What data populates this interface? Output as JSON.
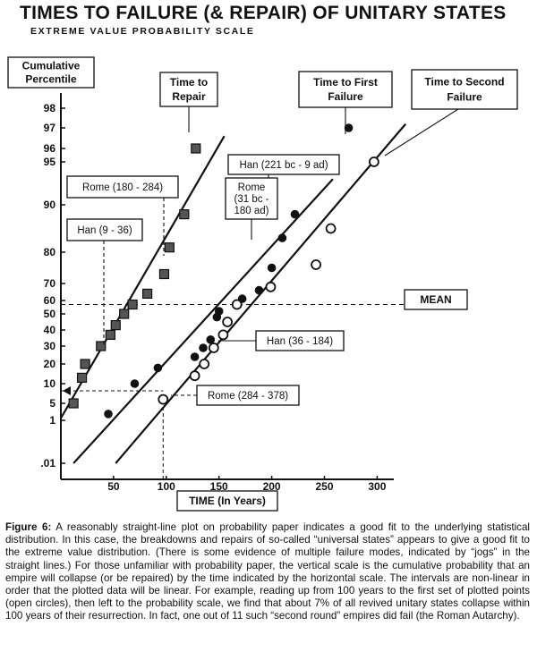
{
  "chart_data": {
    "type": "scatter",
    "title": "TIMES TO FAILURE (& REPAIR) OF UNITARY STATES",
    "subtitle": "EXTREME VALUE PROBABILITY SCALE",
    "xlabel": "TIME (In Years)",
    "ylabel": "Cumulative Percentile",
    "scale": "extreme value probability (y), linear (x)",
    "xlim": [
      0,
      330
    ],
    "x_ticks": [
      "50",
      "100",
      "150",
      "200",
      "250",
      "300"
    ],
    "y_ticks": [
      "98",
      "97",
      "96",
      "95",
      "90",
      "80",
      "70",
      "60",
      "50",
      "40",
      "30",
      "20",
      "10",
      "5",
      "1",
      ".01"
    ],
    "series": [
      {
        "name": "Time to Repair",
        "marker": "square",
        "points": [
          [
            12,
            5
          ],
          [
            20,
            13
          ],
          [
            23,
            20
          ],
          [
            38,
            30
          ],
          [
            47,
            37
          ],
          [
            52,
            43
          ],
          [
            60,
            50
          ],
          [
            68,
            57
          ],
          [
            82,
            64
          ],
          [
            98,
            73
          ],
          [
            103,
            81
          ],
          [
            117,
            88
          ],
          [
            128,
            96
          ]
        ]
      },
      {
        "name": "Time to First Failure",
        "marker": "filled-circle",
        "points": [
          [
            45,
            2.5
          ],
          [
            70,
            10
          ],
          [
            92,
            18
          ],
          [
            127,
            24
          ],
          [
            135,
            29
          ],
          [
            142,
            34
          ],
          [
            148,
            48
          ],
          [
            150,
            52
          ],
          [
            172,
            61
          ],
          [
            188,
            66
          ],
          [
            200,
            75
          ],
          [
            210,
            83
          ],
          [
            222,
            88
          ],
          [
            273,
            97
          ]
        ]
      },
      {
        "name": "Time to Second Failure",
        "marker": "open-circle",
        "points": [
          [
            97,
            6
          ],
          [
            127,
            14
          ],
          [
            136,
            20
          ],
          [
            145,
            29
          ],
          [
            154,
            37
          ],
          [
            158,
            45
          ],
          [
            167,
            57
          ],
          [
            199,
            68
          ],
          [
            242,
            76
          ],
          [
            256,
            85
          ],
          [
            297,
            95
          ]
        ]
      }
    ],
    "fit_lines": [
      "Time to Repair",
      "Time to First Failure",
      "Time to Second Failure"
    ],
    "reference_lines": [
      {
        "label": "MEAN",
        "y": 57
      }
    ],
    "annotations": [
      "Rome (180 - 284)",
      "Han (9 - 36)",
      "Han (221 bc - 9 ad)",
      "Rome (31 bc - 180 ad)",
      "Han (36 - 184)",
      "Rome (284 - 378)"
    ]
  },
  "labels": {
    "cumulative": [
      "Cumulative",
      "Percentile"
    ],
    "repair": [
      "Time to",
      "Repair"
    ],
    "first": [
      "Time to First",
      "Failure"
    ],
    "second": [
      "Time to Second",
      "Failure"
    ],
    "mean": "MEAN",
    "rome_180": "Rome (180 - 284)",
    "han_9": "Han (9 - 36)",
    "han_221": "Han (221 bc - 9 ad)",
    "rome_31": [
      "Rome",
      "(31 bc -",
      "180 ad)"
    ],
    "han_36": "Han (36 - 184)",
    "rome_284": "Rome (284 - 378)"
  },
  "caption": {
    "figure_label": "Figure 6:",
    "text": " A reasonably straight-line plot on probability paper indicates a good fit to the underlying statistical distribution. In this case, the breakdowns and repairs of so-called “universal states” appears to give a good fit to the extreme value distribution. (There is some evidence of multiple failure modes, indicated by “jogs” in the straight lines.) For those unfamiliar with probability paper, the vertical scale is the cumulative probability that an empire will collapse (or be repaired) by the time indicated by the horizontal scale. The intervals are non-linear in order that the plotted data will be linear. For example, reading up from 100 years to the first set of plotted points (open circles), then left to the probability scale, we find that about 7% of all revived unitary states collapse within 100 years of their resurrection. In fact, one out of 11 such “second round” empires did fail (the Roman Autarchy)."
  }
}
